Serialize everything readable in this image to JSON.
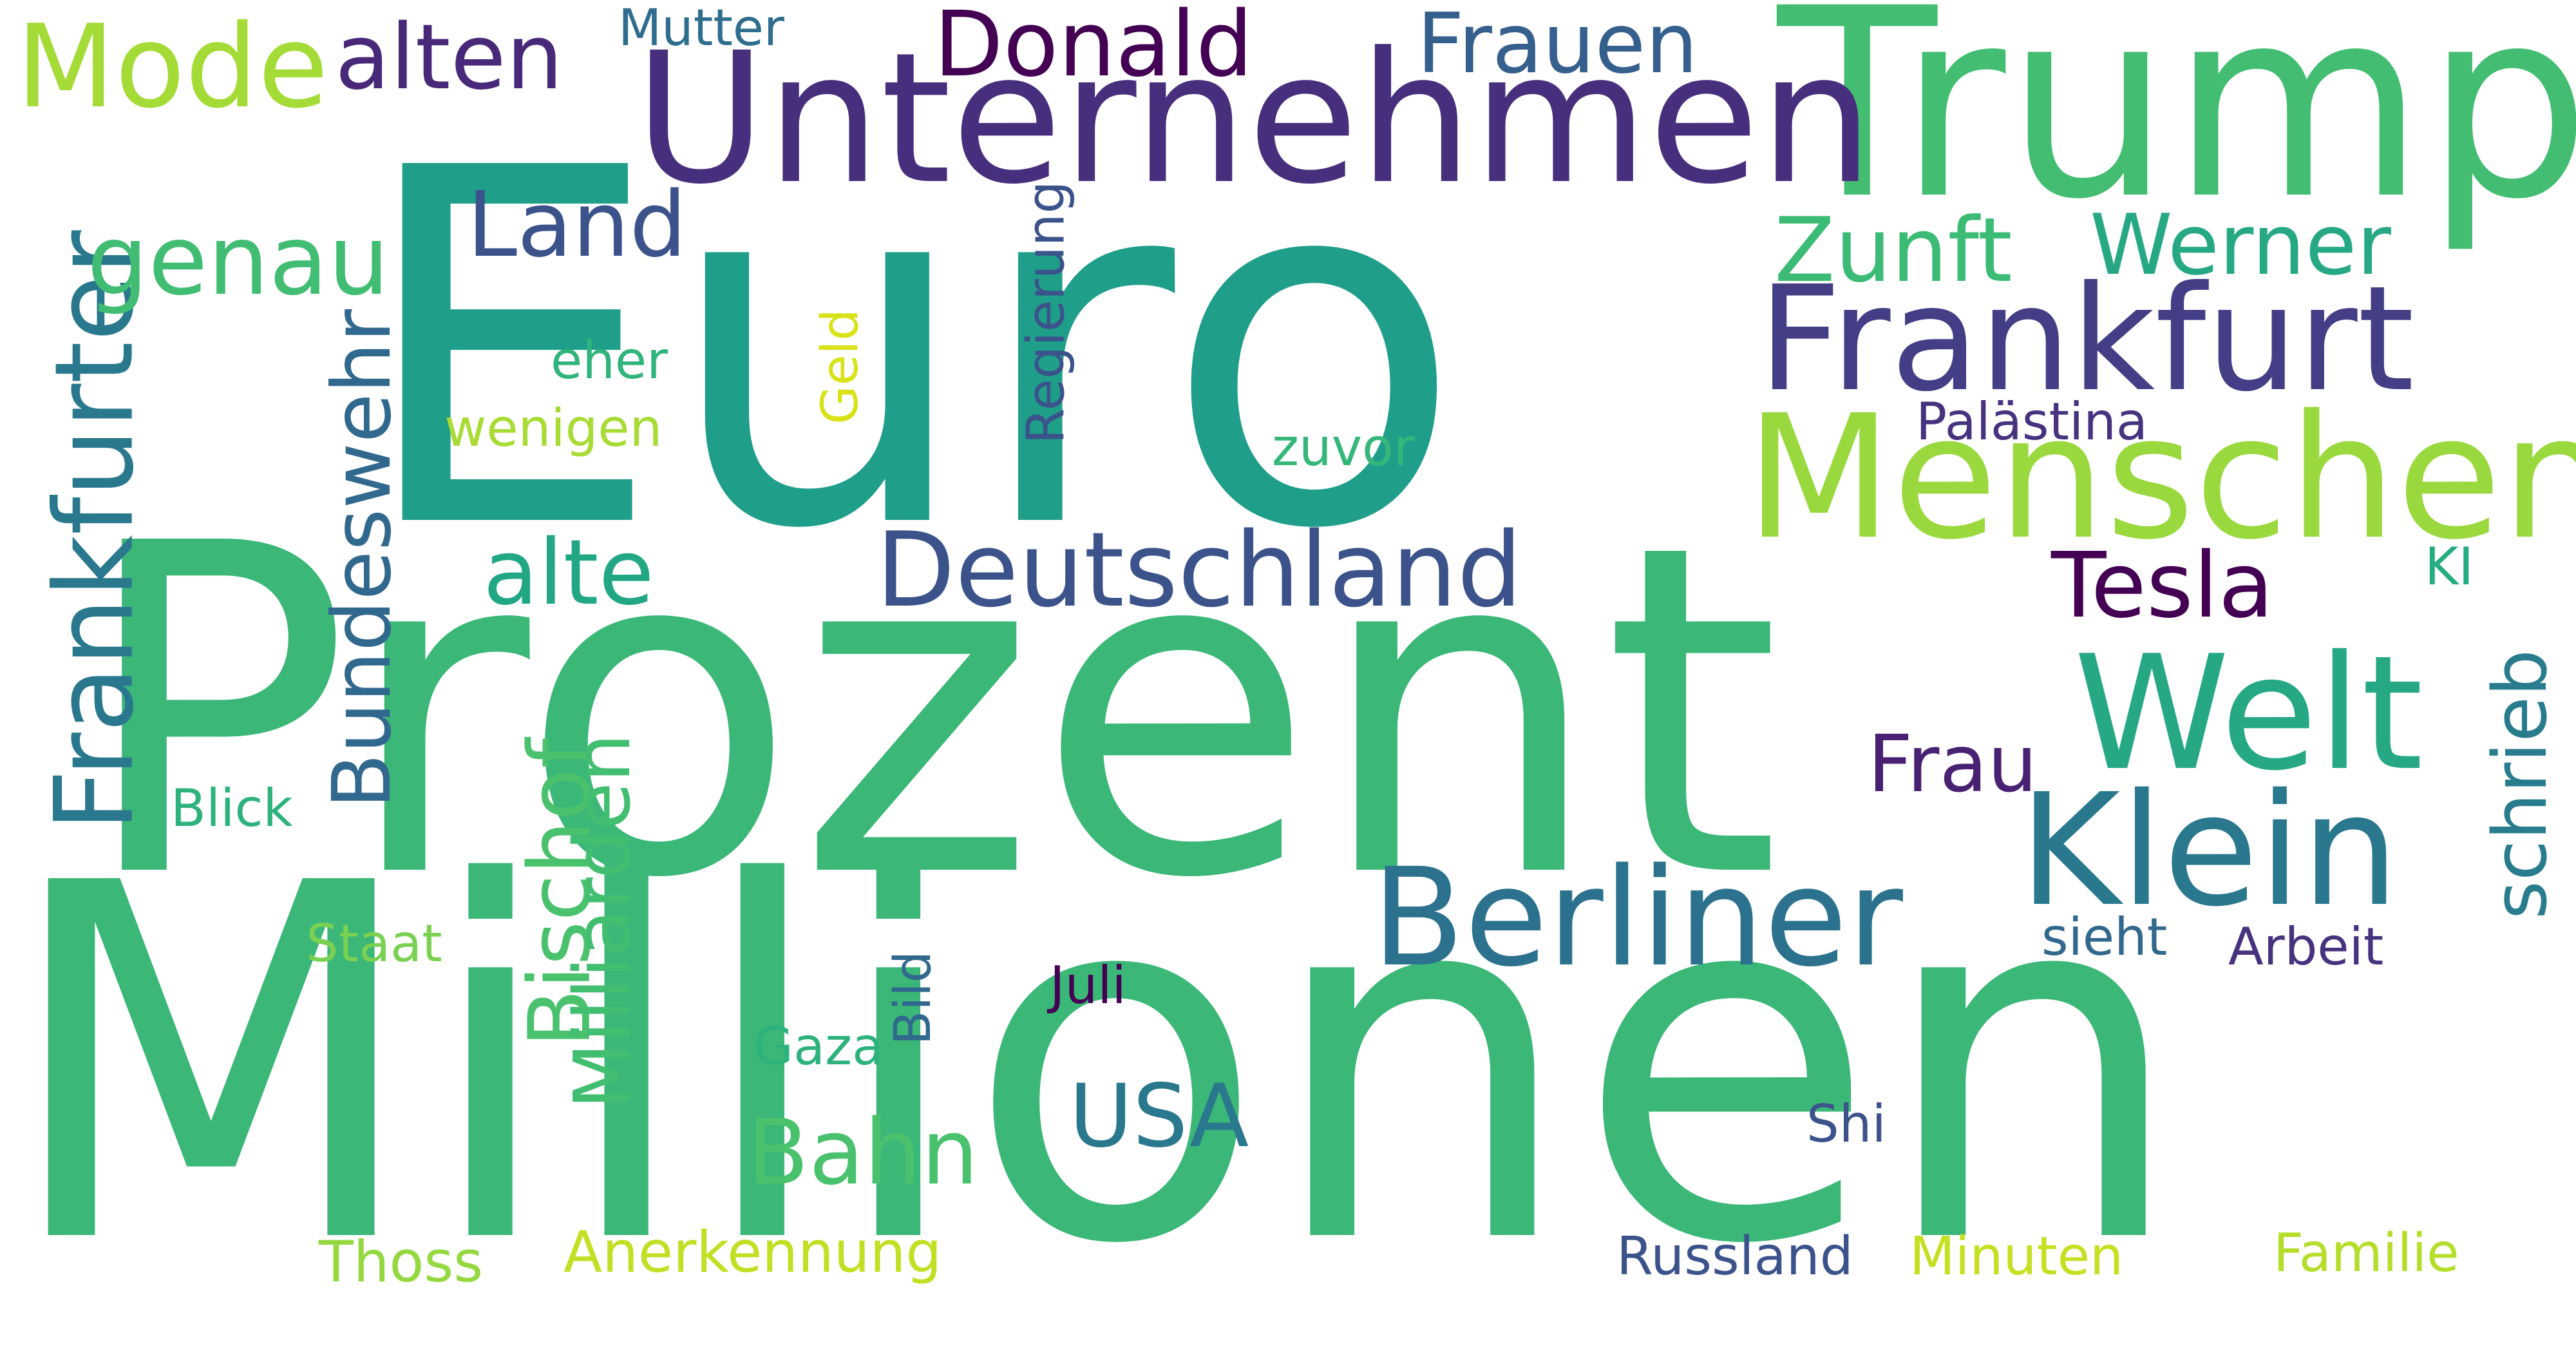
{
  "words": [
    {
      "text": "Euro",
      "color": "#1f9e89"
    },
    {
      "text": "Millionen",
      "color": "#3bb778"
    },
    {
      "text": "Prozent",
      "color": "#3bb778"
    },
    {
      "text": "Trump",
      "color": "#42bd72"
    },
    {
      "text": "Unternehmen",
      "color": "#472f7d"
    },
    {
      "text": "Menschen",
      "color": "#9ad93e"
    },
    {
      "text": "Frankfurt",
      "color": "#433e85"
    },
    {
      "text": "Welt",
      "color": "#26a884"
    },
    {
      "text": "Klein",
      "color": "#2a788e"
    },
    {
      "text": "Berliner",
      "color": "#2c728e"
    },
    {
      "text": "Deutschland",
      "color": "#3b528b"
    },
    {
      "text": "Frankfurter",
      "color": "#2a788e"
    },
    {
      "text": "Bundeswehr",
      "color": "#31688e"
    },
    {
      "text": "Mode",
      "color": "#a5db36"
    },
    {
      "text": "Donald",
      "color": "#440154"
    },
    {
      "text": "alten",
      "color": "#482878"
    },
    {
      "text": "Frauen",
      "color": "#355f8d"
    },
    {
      "text": "Mutter",
      "color": "#2e6d8e"
    },
    {
      "text": "Land",
      "color": "#3b528b"
    },
    {
      "text": "genau",
      "color": "#40bd72"
    },
    {
      "text": "Zunft",
      "color": "#3bbb75"
    },
    {
      "text": "Werner",
      "color": "#26a884"
    },
    {
      "text": "Tesla",
      "color": "#440154"
    },
    {
      "text": "alte",
      "color": "#22a785"
    },
    {
      "text": "Bischof",
      "color": "#4ac16d"
    },
    {
      "text": "Milliarden",
      "color": "#42be71"
    },
    {
      "text": "Frau",
      "color": "#482173"
    },
    {
      "text": "schrieb",
      "color": "#287c8e"
    },
    {
      "text": "USA",
      "color": "#2a788e"
    },
    {
      "text": "Bahn",
      "color": "#4ac16d"
    },
    {
      "text": "Regierung",
      "color": "#3b528b"
    },
    {
      "text": "Geld",
      "color": "#d8e219"
    },
    {
      "text": "eher",
      "color": "#2fb47c"
    },
    {
      "text": "wenigen",
      "color": "#a8db34"
    },
    {
      "text": "zuvor",
      "color": "#35b779"
    },
    {
      "text": "Palästina",
      "color": "#46327e"
    },
    {
      "text": "KI",
      "color": "#25ac82"
    },
    {
      "text": "Blick",
      "color": "#2db27d"
    },
    {
      "text": "Staat",
      "color": "#7ad151"
    },
    {
      "text": "Juli",
      "color": "#440154"
    },
    {
      "text": "Gaza",
      "color": "#2db27d"
    },
    {
      "text": "Bild",
      "color": "#31688e"
    },
    {
      "text": "sieht",
      "color": "#31688e"
    },
    {
      "text": "Arbeit",
      "color": "#46327e"
    },
    {
      "text": "Shi",
      "color": "#3b528b"
    },
    {
      "text": "Thoss",
      "color": "#95d840"
    },
    {
      "text": "Anerkennung",
      "color": "#c2df23"
    },
    {
      "text": "Russland",
      "color": "#3b528b"
    },
    {
      "text": "Minuten",
      "color": "#c5e021"
    },
    {
      "text": "Familie",
      "color": "#b5de2b"
    }
  ]
}
